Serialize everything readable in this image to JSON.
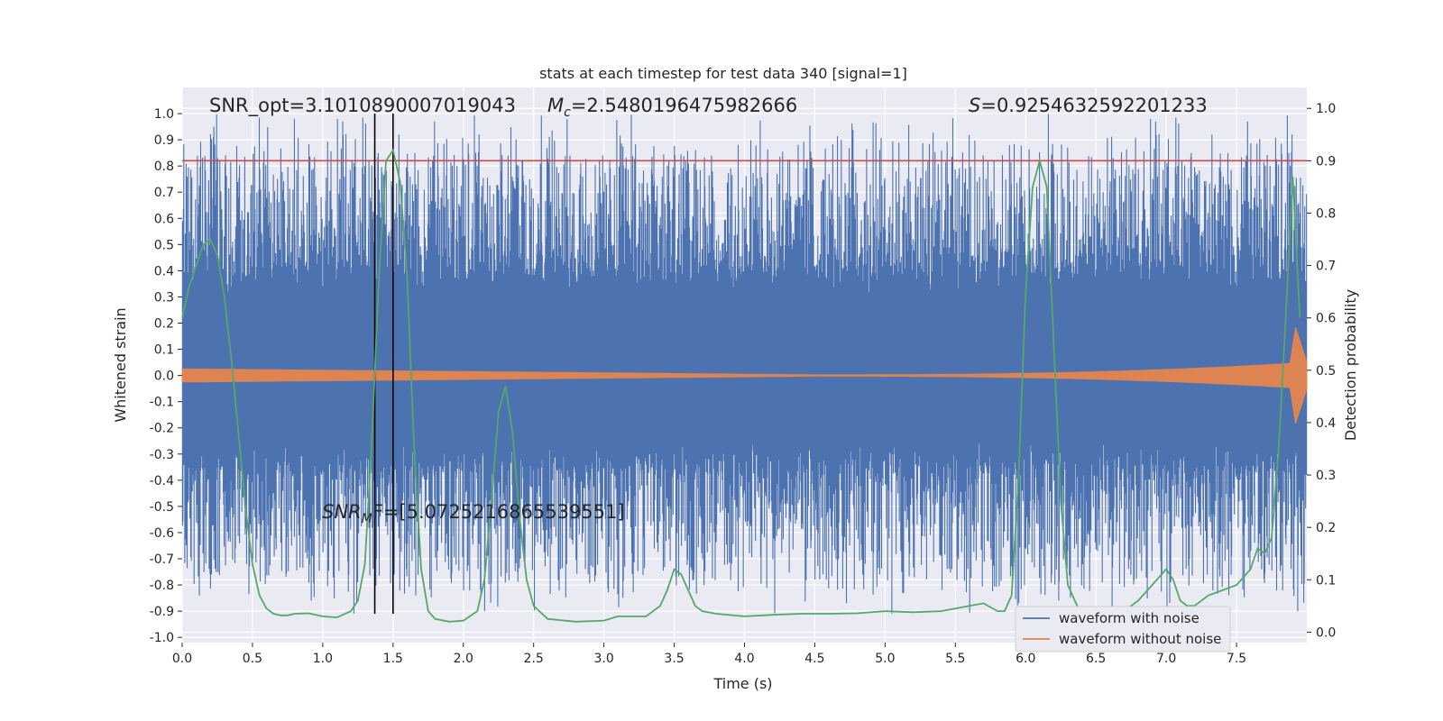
{
  "chart_data": {
    "type": "line",
    "title": "stats at each timestep for test data 340 [signal=1]",
    "xlabel": "Time (s)",
    "ylabel_left": "Whitened strain",
    "ylabel_right": "Detection probability",
    "xlim": [
      0.0,
      8.0
    ],
    "ylim_left": [
      -1.02,
      1.1
    ],
    "ylim_right": [
      -0.02,
      1.04
    ],
    "xticks": [
      "0.0",
      "0.5",
      "1.0",
      "1.5",
      "2.0",
      "2.5",
      "3.0",
      "3.5",
      "4.0",
      "4.5",
      "5.0",
      "5.5",
      "6.0",
      "6.5",
      "7.0",
      "7.5"
    ],
    "yticks_left": [
      "-1.0",
      "-0.9",
      "-0.8",
      "-0.7",
      "-0.6",
      "-0.5",
      "-0.4",
      "-0.3",
      "-0.2",
      "-0.1",
      "0.0",
      "0.1",
      "0.2",
      "0.3",
      "0.4",
      "0.5",
      "0.6",
      "0.7",
      "0.8",
      "0.9",
      "1.0"
    ],
    "yticks_right": [
      "0.0",
      "0.1",
      "0.2",
      "0.3",
      "0.4",
      "0.5",
      "0.6",
      "0.7",
      "0.8",
      "0.9",
      "1.0"
    ],
    "grid": true,
    "legend_position": "lower-right",
    "colors": {
      "noise": "#4c72b0",
      "clean": "#dd8452",
      "prob": "#55a868",
      "threshold": "#c44e52",
      "vlines": "#000000",
      "axes_bg": "#eaeaf2"
    },
    "annotations": {
      "snr_opt": "SNR_opt=3.1010890007019043",
      "mc_sym": "M",
      "mc_sub": "c",
      "mc_val": "=2.5480196475982666",
      "s_sym": "S",
      "s_val": "=0.9254632592201233",
      "snr_mf_sym": "SNR",
      "snr_mf_sub": "M",
      "snr_mf_val": "F=[5.0725216865539551]"
    },
    "threshold_prob": 0.9,
    "vlines_x": [
      1.37,
      1.5
    ],
    "series": [
      {
        "name": "waveform with noise",
        "key": "noise",
        "envelope_upper_typical": 0.42,
        "envelope_lower_typical": -0.35,
        "peak_max": 1.0,
        "peak_min": -0.92
      },
      {
        "name": "waveform without noise",
        "key": "clean",
        "amplitude_start": 0.025,
        "amplitude_end": 0.05,
        "merger_time": 7.93,
        "merger_peak": 0.17
      },
      {
        "name": "detection probability",
        "key": "prob",
        "x": [
          0.0,
          0.05,
          0.1,
          0.15,
          0.2,
          0.25,
          0.3,
          0.35,
          0.4,
          0.45,
          0.5,
          0.55,
          0.6,
          0.65,
          0.7,
          0.75,
          0.8,
          0.9,
          1.0,
          1.1,
          1.2,
          1.25,
          1.3,
          1.35,
          1.4,
          1.45,
          1.5,
          1.55,
          1.6,
          1.65,
          1.7,
          1.75,
          1.8,
          1.9,
          2.0,
          2.1,
          2.15,
          2.2,
          2.25,
          2.3,
          2.35,
          2.4,
          2.45,
          2.5,
          2.6,
          2.8,
          3.0,
          3.1,
          3.2,
          3.3,
          3.4,
          3.45,
          3.5,
          3.55,
          3.6,
          3.65,
          3.7,
          3.8,
          4.0,
          4.2,
          4.4,
          4.6,
          4.8,
          5.0,
          5.2,
          5.4,
          5.6,
          5.7,
          5.8,
          5.85,
          5.9,
          5.95,
          6.0,
          6.05,
          6.1,
          6.15,
          6.2,
          6.25,
          6.3,
          6.4,
          6.5,
          6.6,
          6.7,
          6.8,
          6.9,
          7.0,
          7.05,
          7.1,
          7.15,
          7.2,
          7.3,
          7.4,
          7.5,
          7.6,
          7.65,
          7.7,
          7.75,
          7.8,
          7.85,
          7.9,
          7.95
        ],
        "y": [
          0.6,
          0.66,
          0.7,
          0.74,
          0.75,
          0.72,
          0.64,
          0.52,
          0.38,
          0.24,
          0.13,
          0.07,
          0.045,
          0.035,
          0.032,
          0.032,
          0.035,
          0.036,
          0.03,
          0.028,
          0.04,
          0.06,
          0.13,
          0.37,
          0.68,
          0.9,
          0.92,
          0.86,
          0.68,
          0.35,
          0.12,
          0.04,
          0.025,
          0.02,
          0.022,
          0.04,
          0.1,
          0.25,
          0.42,
          0.47,
          0.38,
          0.22,
          0.1,
          0.05,
          0.025,
          0.02,
          0.022,
          0.03,
          0.03,
          0.03,
          0.05,
          0.08,
          0.12,
          0.11,
          0.08,
          0.05,
          0.04,
          0.035,
          0.03,
          0.033,
          0.035,
          0.035,
          0.036,
          0.04,
          0.038,
          0.04,
          0.05,
          0.055,
          0.04,
          0.04,
          0.07,
          0.3,
          0.65,
          0.85,
          0.9,
          0.85,
          0.55,
          0.25,
          0.09,
          0.03,
          0.02,
          0.03,
          0.04,
          0.06,
          0.09,
          0.12,
          0.1,
          0.06,
          0.05,
          0.05,
          0.07,
          0.08,
          0.09,
          0.12,
          0.16,
          0.15,
          0.18,
          0.35,
          0.6,
          0.87,
          0.6
        ]
      }
    ]
  }
}
